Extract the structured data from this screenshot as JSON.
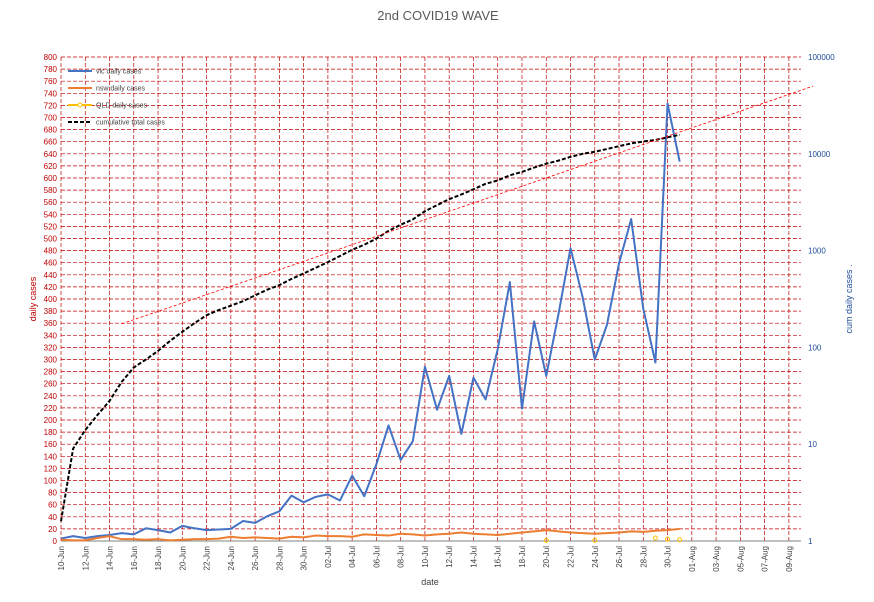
{
  "chart_data": {
    "type": "line",
    "title": "2nd COVID19 WAVE",
    "xlabel": "date",
    "ylabel": "daily cases",
    "y2label": "cum daily cases .",
    "ylim": [
      0,
      800
    ],
    "y2lim": [
      1,
      100000
    ],
    "y2scale": "log",
    "grid": true,
    "legend_position": "top-left",
    "x_ticks": [
      "10-Jun",
      "12-Jun",
      "14-Jun",
      "16-Jun",
      "18-Jun",
      "20-Jun",
      "22-Jun",
      "24-Jun",
      "26-Jun",
      "28-Jun",
      "30-Jun",
      "02-Jul",
      "04-Jul",
      "06-Jul",
      "08-Jul",
      "10-Jul",
      "12-Jul",
      "14-Jul",
      "16-Jul",
      "18-Jul",
      "20-Jul",
      "22-Jul",
      "24-Jul",
      "26-Jul",
      "28-Jul",
      "30-Jul",
      "01-Aug",
      "03-Aug",
      "05-Aug",
      "07-Aug",
      "09-Aug"
    ],
    "y_ticks": [
      0,
      20,
      40,
      60,
      80,
      100,
      120,
      140,
      160,
      180,
      200,
      220,
      240,
      260,
      280,
      300,
      320,
      340,
      360,
      380,
      400,
      420,
      440,
      460,
      480,
      500,
      520,
      540,
      560,
      580,
      600,
      620,
      640,
      660,
      680,
      700,
      720,
      740,
      760,
      780,
      800
    ],
    "y2_ticks": [
      "1",
      "10",
      "100",
      "1000",
      "10000",
      "100000"
    ],
    "series": [
      {
        "name": "vic daily cases",
        "color": "#4472c4",
        "axis": "left",
        "values": [
          4,
          8,
          5,
          8,
          10,
          13,
          11,
          21,
          18,
          14,
          25,
          21,
          18,
          19,
          20,
          33,
          30,
          41,
          49,
          75,
          64,
          73,
          77,
          67,
          108,
          74,
          127,
          191,
          134,
          165,
          288,
          217,
          273,
          177,
          270,
          234,
          317,
          428,
          219,
          363,
          273,
          374,
          484,
          403,
          300,
          357,
          459,
          532,
          384,
          295,
          723,
          627
        ]
      },
      {
        "name": "nsw daily cases",
        "color": "#ed7d31",
        "axis": "left",
        "values": [
          2,
          1,
          1,
          5,
          8,
          3,
          3,
          2,
          3,
          1,
          2,
          3,
          3,
          4,
          7,
          5,
          6,
          5,
          4,
          7,
          6,
          9,
          8,
          8,
          7,
          11,
          10,
          9,
          12,
          11,
          9,
          11,
          12,
          14,
          12,
          11,
          10,
          12,
          14,
          16,
          18,
          16,
          14,
          13,
          12,
          13,
          14,
          16,
          15,
          17,
          18,
          20
        ]
      },
      {
        "name": "QLD daily cases",
        "color": "#ffc000",
        "axis": "left",
        "points": [
          {
            "x": 40,
            "y": 1
          },
          {
            "x": 44,
            "y": 1
          },
          {
            "x": 49,
            "y": 5
          },
          {
            "x": 50,
            "y": 3
          },
          {
            "x": 51,
            "y": 2
          }
        ]
      },
      {
        "name": "cumulative total cases",
        "color": "#000000",
        "axis": "right",
        "style": "dashed",
        "values": [
          1.6,
          9,
          14,
          20,
          28,
          44,
          62,
          75,
          92,
          117,
          145,
          178,
          215,
          243,
          270,
          300,
          345,
          395,
          440,
          510,
          580,
          665,
          760,
          880,
          1020,
          1150,
          1330,
          1600,
          1850,
          2100,
          2550,
          2950,
          3400,
          3800,
          4300,
          4900,
          5300,
          6000,
          6500,
          7200,
          7900,
          8500,
          9300,
          10000,
          10500,
          11200,
          12000,
          12800,
          13400,
          13900,
          14800,
          15700
        ]
      },
      {
        "name": "trend",
        "color": "#ff0000",
        "axis": "right",
        "style": "dotted",
        "start": {
          "x": 5,
          "y": 175
        },
        "end": {
          "x": 62,
          "y": 50000
        }
      }
    ]
  }
}
